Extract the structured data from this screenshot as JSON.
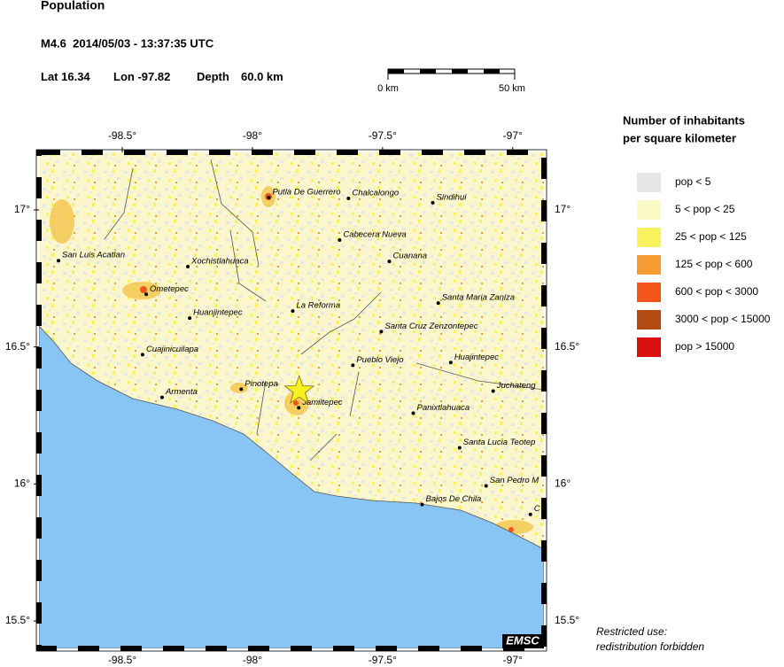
{
  "header": {
    "title": "Population",
    "event": "M4.6  2014/05/03 - 13:37:35 UTC",
    "lat_label": "Lat",
    "lon_label": "Lon",
    "depth_label": "Depth",
    "depth": "60.0 km"
  },
  "event": {
    "lat": 16.34,
    "lon": -97.82
  },
  "scale_bar": {
    "start": "0 km",
    "end": "50 km"
  },
  "legend": {
    "title": [
      "Number of inhabitants",
      "per square kilometer"
    ],
    "items": [
      {
        "label": "pop < 5",
        "color": "#e6e6e6"
      },
      {
        "label": "5 < pop < 25",
        "color": "#fbfbc8"
      },
      {
        "label": "25 < pop < 125",
        "color": "#f7f25e"
      },
      {
        "label": "125 < pop < 600",
        "color": "#f89a32"
      },
      {
        "label": "600 < pop < 3000",
        "color": "#f2541a"
      },
      {
        "label": "3000 < pop < 15000",
        "color": "#b24a12"
      },
      {
        "label": "pop > 15000",
        "color": "#d81010"
      }
    ]
  },
  "map": {
    "lon_range": [
      -98.82,
      -96.88
    ],
    "lat_range": [
      17.21,
      15.4
    ],
    "lon_ticks": [
      {
        "value": -98.5,
        "label": "-98.5°"
      },
      {
        "value": -98,
        "label": "-98°"
      },
      {
        "value": -97.5,
        "label": "-97.5°"
      },
      {
        "value": -97,
        "label": "-97°"
      }
    ],
    "lat_ticks": [
      {
        "value": 17,
        "label": "17°"
      },
      {
        "value": 16.5,
        "label": "16.5°"
      },
      {
        "value": 16,
        "label": "16°"
      },
      {
        "value": 15.5,
        "label": "15.5°"
      }
    ],
    "towns": [
      {
        "name": "San Luis Acatlan",
        "lon": -98.745,
        "lat": 16.815
      },
      {
        "name": "Putla De Guerrero",
        "lon": -97.937,
        "lat": 17.045
      },
      {
        "name": "Chalcalongo",
        "lon": -97.631,
        "lat": 17.042
      },
      {
        "name": "Sindihui",
        "lon": -97.307,
        "lat": 17.026
      },
      {
        "name": "Cabecera Nueva",
        "lon": -97.665,
        "lat": 16.89
      },
      {
        "name": "Cuanana",
        "lon": -97.474,
        "lat": 16.812
      },
      {
        "name": "Xochistlahuaca",
        "lon": -98.248,
        "lat": 16.793
      },
      {
        "name": "Ometepec",
        "lon": -98.408,
        "lat": 16.692
      },
      {
        "name": "Santa Maria Zaniza",
        "lon": -97.286,
        "lat": 16.66
      },
      {
        "name": "La Reforma",
        "lon": -97.845,
        "lat": 16.631
      },
      {
        "name": "Huanjintepec",
        "lon": -98.241,
        "lat": 16.605
      },
      {
        "name": "Santa Cruz Zenzontepec",
        "lon": -97.505,
        "lat": 16.556
      },
      {
        "name": "Cuajinicuilapa",
        "lon": -98.422,
        "lat": 16.472
      },
      {
        "name": "Pueblo Viejo",
        "lon": -97.614,
        "lat": 16.433
      },
      {
        "name": "Huajintepec",
        "lon": -97.238,
        "lat": 16.443
      },
      {
        "name": "Juchateng",
        "lon": -97.075,
        "lat": 16.339
      },
      {
        "name": "Armenta",
        "lon": -98.347,
        "lat": 16.316
      },
      {
        "name": "Pinotepa",
        "lon": -98.043,
        "lat": 16.346
      },
      {
        "name": "Jamiltepec",
        "lon": -97.822,
        "lat": 16.278
      },
      {
        "name": "Panixtlahuaca",
        "lon": -97.382,
        "lat": 16.258
      },
      {
        "name": "Santa Lucia Teotep",
        "lon": -97.204,
        "lat": 16.132
      },
      {
        "name": "San Pedro M",
        "lon": -97.102,
        "lat": 15.993
      },
      {
        "name": "Bajos De Chila",
        "lon": -97.348,
        "lat": 15.925
      },
      {
        "name": "C",
        "lon": -96.932,
        "lat": 15.889
      }
    ]
  },
  "badge": "EMSC",
  "notice": [
    "Restricted use:",
    "redistribution forbidden"
  ]
}
